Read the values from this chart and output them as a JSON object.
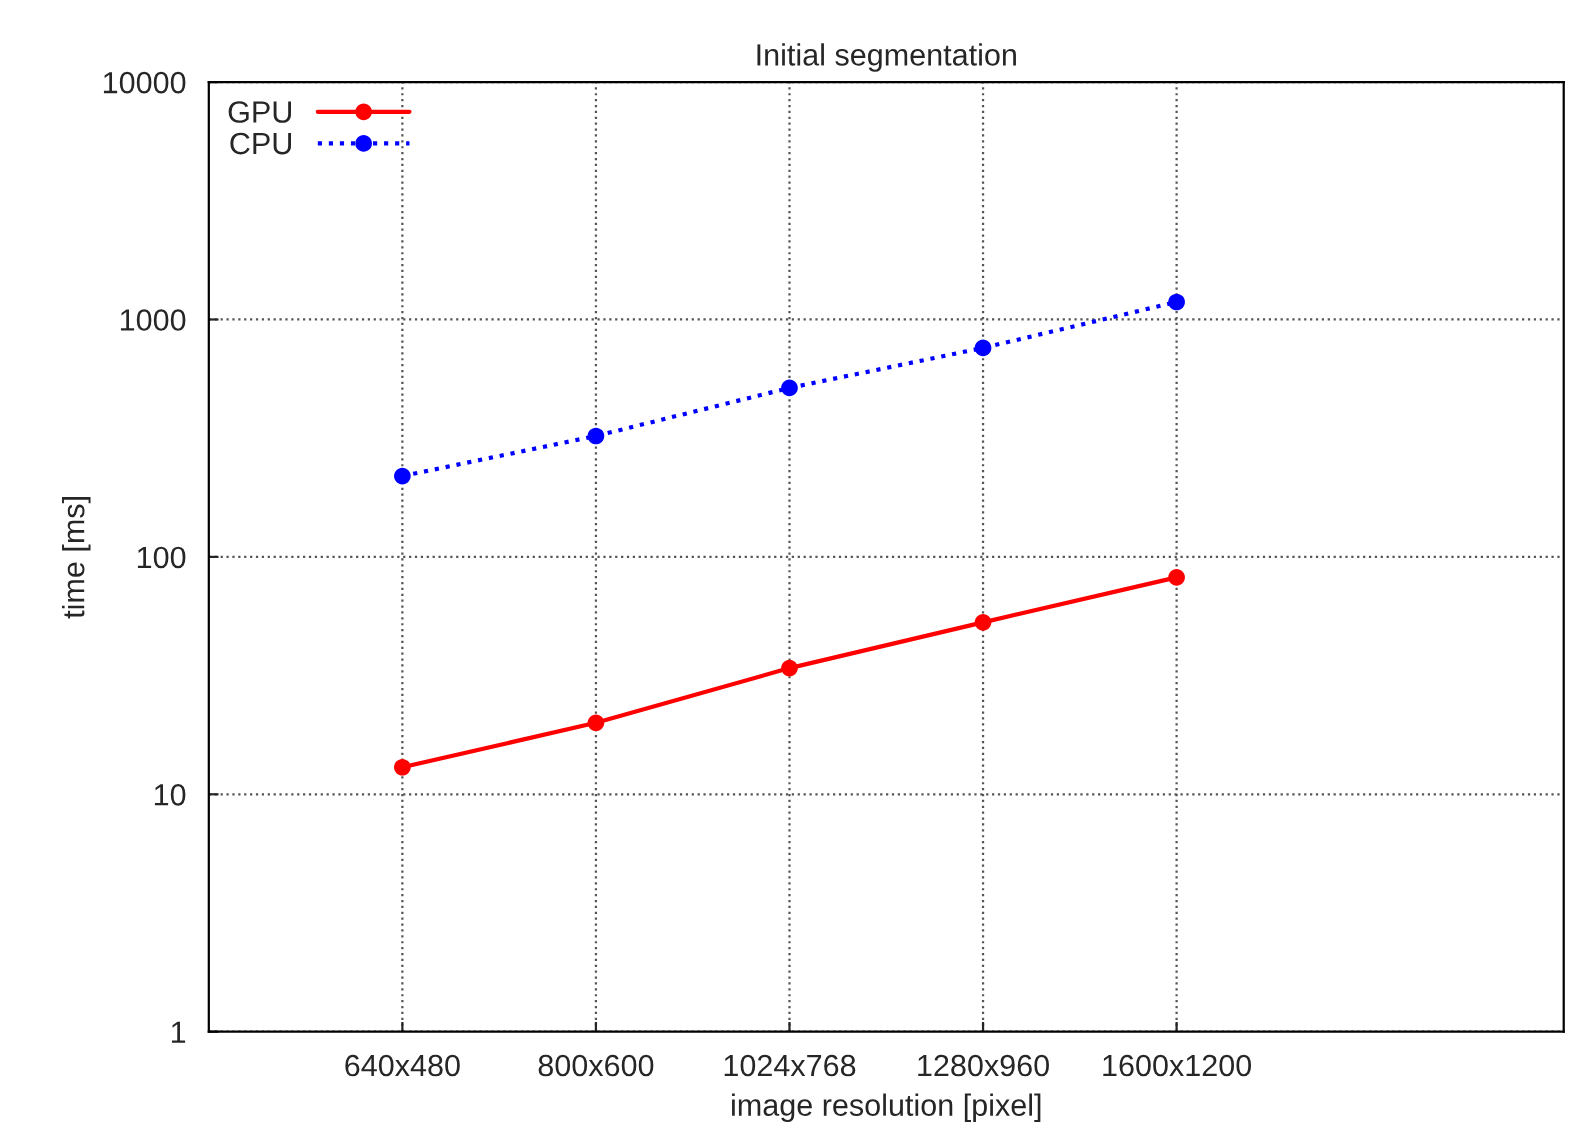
{
  "chart_data": {
    "type": "line",
    "title": "Initial segmentation",
    "xlabel": "image resolution [pixel]",
    "ylabel": "time [ms]",
    "categories": [
      "640x480",
      "800x600",
      "1024x768",
      "1280x960",
      "1600x1200"
    ],
    "series": [
      {
        "name": "GPU",
        "color": "#ff0000",
        "line_style": "solid",
        "values": [
          13,
          20,
          34,
          53,
          82
        ]
      },
      {
        "name": "CPU",
        "color": "#0000ff",
        "line_style": "dotted",
        "values": [
          219,
          323,
          515,
          759,
          1185
        ]
      }
    ],
    "log": "y",
    "ylim": [
      1,
      10000
    ],
    "yticks": [
      1,
      10,
      100,
      1000,
      10000
    ],
    "grid": true,
    "legend": "top left",
    "marker": "circle"
  }
}
